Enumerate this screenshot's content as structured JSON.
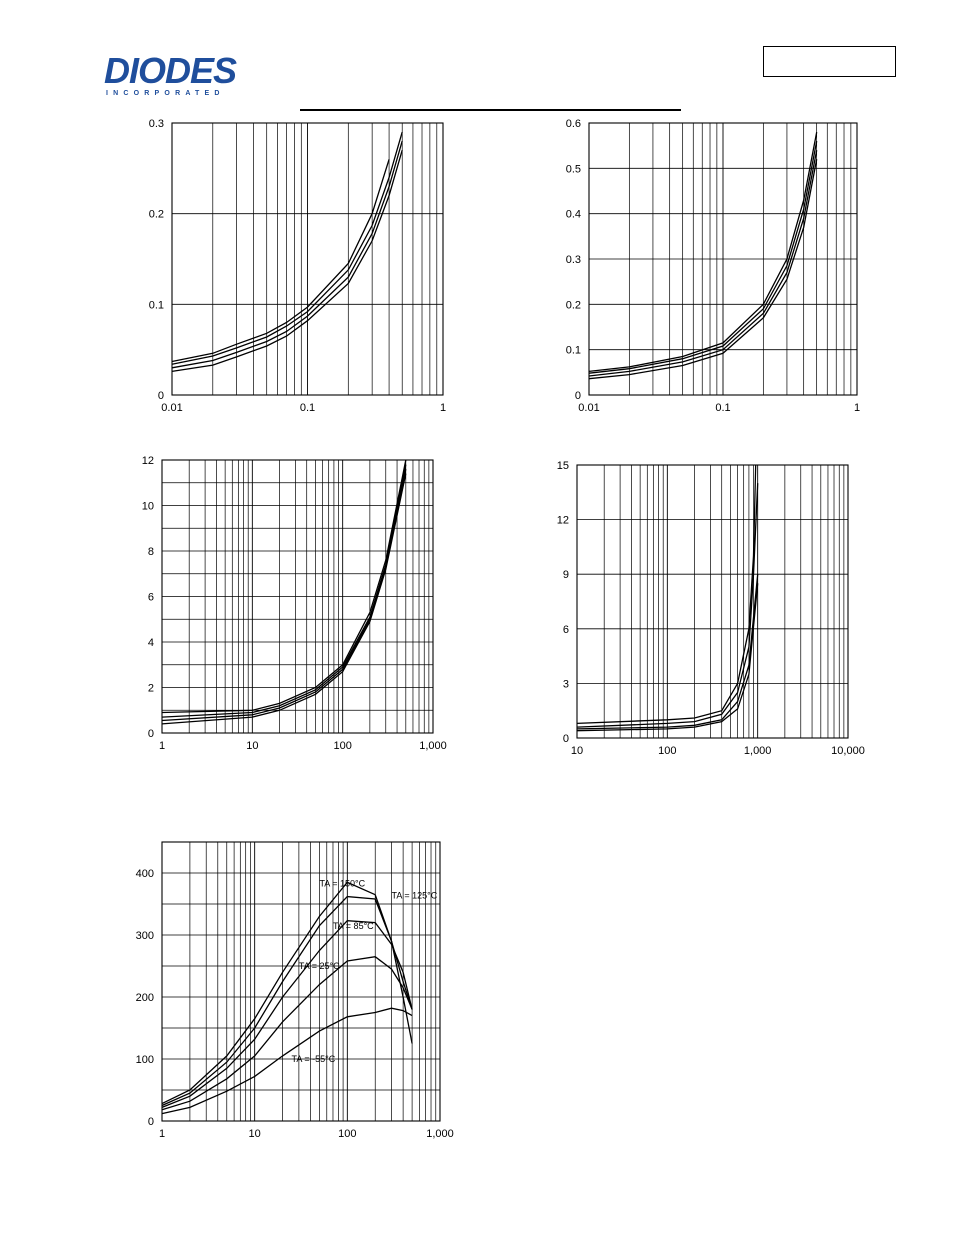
{
  "header": {
    "logo_text": "DIODES",
    "logo_subtext": "INCORPORATED",
    "logo_color": "#1f4e9c"
  },
  "chart_data": [
    {
      "id": "c1",
      "type": "line",
      "xscale": "log",
      "xlim": [
        0.01,
        1
      ],
      "ylim": [
        0,
        0.3
      ],
      "x_ticks": [
        0.01,
        0.1,
        1
      ],
      "x_tick_labels": [
        "0.01",
        "0.1",
        "1"
      ],
      "y_ticks": [
        0,
        0.1,
        0.2,
        0.3
      ],
      "y_tick_labels": [
        "0",
        "0.1",
        "0.2",
        "0.3"
      ],
      "grid": true,
      "series": [
        {
          "x": [
            0.01,
            0.02,
            0.03,
            0.05,
            0.07,
            0.1,
            0.2,
            0.3,
            0.4
          ],
          "y": [
            0.037,
            0.046,
            0.056,
            0.068,
            0.08,
            0.097,
            0.145,
            0.2,
            0.26
          ]
        },
        {
          "x": [
            0.01,
            0.02,
            0.03,
            0.05,
            0.07,
            0.1,
            0.2,
            0.3,
            0.4,
            0.5
          ],
          "y": [
            0.034,
            0.043,
            0.052,
            0.064,
            0.076,
            0.092,
            0.138,
            0.187,
            0.24,
            0.29
          ]
        },
        {
          "x": [
            0.01,
            0.02,
            0.03,
            0.05,
            0.07,
            0.1,
            0.2,
            0.3,
            0.4,
            0.5
          ],
          "y": [
            0.03,
            0.038,
            0.047,
            0.059,
            0.07,
            0.087,
            0.13,
            0.178,
            0.23,
            0.28
          ]
        },
        {
          "x": [
            0.01,
            0.02,
            0.03,
            0.05,
            0.07,
            0.1,
            0.2,
            0.3,
            0.4,
            0.5
          ],
          "y": [
            0.026,
            0.033,
            0.042,
            0.054,
            0.065,
            0.082,
            0.123,
            0.17,
            0.22,
            0.27
          ]
        }
      ]
    },
    {
      "id": "c2",
      "type": "line",
      "xscale": "log",
      "xlim": [
        0.01,
        1
      ],
      "ylim": [
        0,
        0.6
      ],
      "x_ticks": [
        0.01,
        0.1,
        1
      ],
      "x_tick_labels": [
        "0.01",
        "0.1",
        "1"
      ],
      "y_ticks": [
        0,
        0.1,
        0.2,
        0.3,
        0.4,
        0.5,
        0.6
      ],
      "y_tick_labels": [
        "0",
        "0.1",
        "0.2",
        "0.3",
        "0.4",
        "0.5",
        "0.6"
      ],
      "grid": true,
      "series": [
        {
          "x": [
            0.01,
            0.02,
            0.05,
            0.1,
            0.2,
            0.3,
            0.4,
            0.5
          ],
          "y": [
            0.052,
            0.062,
            0.085,
            0.115,
            0.2,
            0.3,
            0.43,
            0.58
          ]
        },
        {
          "x": [
            0.01,
            0.02,
            0.05,
            0.1,
            0.2,
            0.3,
            0.4,
            0.5
          ],
          "y": [
            0.048,
            0.058,
            0.08,
            0.108,
            0.19,
            0.285,
            0.41,
            0.56
          ]
        },
        {
          "x": [
            0.01,
            0.02,
            0.05,
            0.1,
            0.2,
            0.3,
            0.4,
            0.5
          ],
          "y": [
            0.042,
            0.052,
            0.073,
            0.1,
            0.18,
            0.27,
            0.39,
            0.54
          ]
        },
        {
          "x": [
            0.01,
            0.02,
            0.05,
            0.1,
            0.2,
            0.3,
            0.4,
            0.5
          ],
          "y": [
            0.036,
            0.045,
            0.065,
            0.092,
            0.17,
            0.255,
            0.37,
            0.52
          ]
        }
      ]
    },
    {
      "id": "c3",
      "type": "line",
      "xscale": "log",
      "xlim": [
        1,
        1000
      ],
      "ylim": [
        0,
        12
      ],
      "x_ticks": [
        1,
        10,
        100,
        1000
      ],
      "x_tick_labels": [
        "1",
        "10",
        "100",
        "1,000"
      ],
      "y_ticks": [
        0,
        2,
        4,
        6,
        8,
        10,
        12
      ],
      "y_tick_labels": [
        "0",
        "2",
        "4",
        "6",
        "8",
        "10",
        "12"
      ],
      "grid": true,
      "series": [
        {
          "x": [
            1,
            10,
            20,
            50,
            100,
            200,
            300,
            500
          ],
          "y": [
            0.9,
            1.0,
            1.3,
            2.0,
            3.0,
            5.3,
            7.6,
            12.0
          ]
        },
        {
          "x": [
            1,
            10,
            20,
            50,
            100,
            200,
            300,
            500
          ],
          "y": [
            0.7,
            0.9,
            1.2,
            1.9,
            2.9,
            5.1,
            7.4,
            11.8
          ]
        },
        {
          "x": [
            1,
            10,
            20,
            50,
            100,
            200,
            300,
            500
          ],
          "y": [
            0.55,
            0.8,
            1.1,
            1.8,
            2.8,
            5.0,
            7.3,
            11.6
          ]
        },
        {
          "x": [
            1,
            10,
            20,
            50,
            100,
            200,
            300,
            500
          ],
          "y": [
            0.4,
            0.7,
            1.0,
            1.7,
            2.7,
            4.9,
            7.2,
            11.4
          ]
        }
      ]
    },
    {
      "id": "c4",
      "type": "line",
      "xscale": "log",
      "xlim": [
        10,
        10000
      ],
      "ylim": [
        0,
        15
      ],
      "x_ticks": [
        10,
        100,
        1000,
        10000
      ],
      "x_tick_labels": [
        "10",
        "100",
        "1,000",
        "10,000"
      ],
      "y_ticks": [
        0,
        3,
        6,
        9,
        12,
        15
      ],
      "y_tick_labels": [
        "0",
        "3",
        "6",
        "9",
        "12",
        "15"
      ],
      "grid": true,
      "series": [
        {
          "x": [
            10,
            100,
            200,
            400,
            600,
            800,
            900,
            950
          ],
          "y": [
            0.8,
            1.0,
            1.1,
            1.5,
            3.0,
            6.0,
            10.0,
            15.0
          ]
        },
        {
          "x": [
            10,
            100,
            200,
            400,
            600,
            800,
            900,
            1000
          ],
          "y": [
            0.6,
            0.8,
            0.9,
            1.3,
            2.5,
            5.0,
            9.0,
            14.0
          ]
        },
        {
          "x": [
            10,
            100,
            200,
            400,
            600,
            800,
            1000
          ],
          "y": [
            0.5,
            0.6,
            0.7,
            1.0,
            2.0,
            4.0,
            9.0
          ]
        },
        {
          "x": [
            10,
            100,
            200,
            400,
            600,
            800,
            1000
          ],
          "y": [
            0.4,
            0.5,
            0.6,
            0.9,
            1.6,
            3.5,
            8.5
          ]
        }
      ]
    },
    {
      "id": "c5",
      "type": "line",
      "xscale": "log",
      "xlim": [
        1,
        1000
      ],
      "ylim": [
        0,
        450
      ],
      "x_ticks": [
        1,
        10,
        100,
        1000
      ],
      "x_tick_labels": [
        "1",
        "10",
        "100",
        "1,000"
      ],
      "y_ticks": [
        0,
        100,
        200,
        300,
        400
      ],
      "y_tick_labels": [
        "0",
        "100",
        "200",
        "300",
        "400"
      ],
      "grid": true,
      "annotations": [
        "TA = 150°C",
        "TA = 125°C",
        "TA = 85°C",
        "TA = 25°C",
        "TA = -55°C"
      ],
      "series": [
        {
          "name": "TA = 150°C",
          "x": [
            1,
            2,
            5,
            10,
            20,
            50,
            100,
            200,
            300,
            400,
            500
          ],
          "y": [
            28,
            50,
            105,
            165,
            240,
            330,
            385,
            365,
            290,
            200,
            125
          ]
        },
        {
          "name": "TA = 125°C",
          "x": [
            1,
            2,
            5,
            10,
            20,
            50,
            100,
            200,
            300,
            400,
            500
          ],
          "y": [
            25,
            45,
            95,
            150,
            225,
            315,
            362,
            358,
            290,
            225,
            180
          ]
        },
        {
          "name": "TA = 85°C",
          "x": [
            1,
            2,
            5,
            10,
            20,
            50,
            100,
            200,
            300,
            400,
            500
          ],
          "y": [
            22,
            40,
            85,
            132,
            200,
            275,
            323,
            320,
            285,
            240,
            180
          ]
        },
        {
          "name": "TA = 25°C",
          "x": [
            1,
            2,
            5,
            10,
            20,
            50,
            100,
            200,
            300,
            400,
            500
          ],
          "y": [
            18,
            32,
            68,
            105,
            160,
            220,
            258,
            265,
            245,
            215,
            180
          ]
        },
        {
          "name": "TA = -55°C",
          "x": [
            1,
            2,
            5,
            10,
            20,
            50,
            100,
            200,
            300,
            400,
            500
          ],
          "y": [
            12,
            22,
            48,
            72,
            105,
            145,
            168,
            175,
            182,
            178,
            170
          ]
        }
      ]
    }
  ]
}
